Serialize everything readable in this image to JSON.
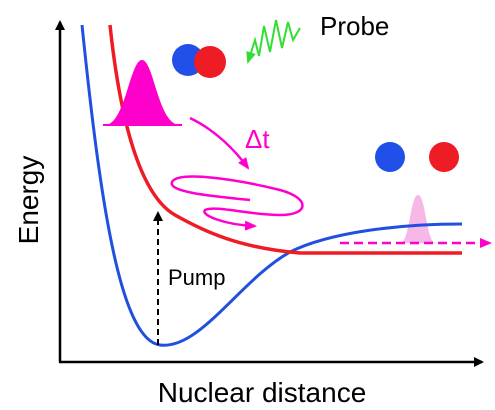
{
  "labels": {
    "probe": "Probe",
    "delay": "Δt",
    "y_axis": "Energy",
    "x_axis": "Nuclear distance",
    "pump": "Pump"
  }
}
